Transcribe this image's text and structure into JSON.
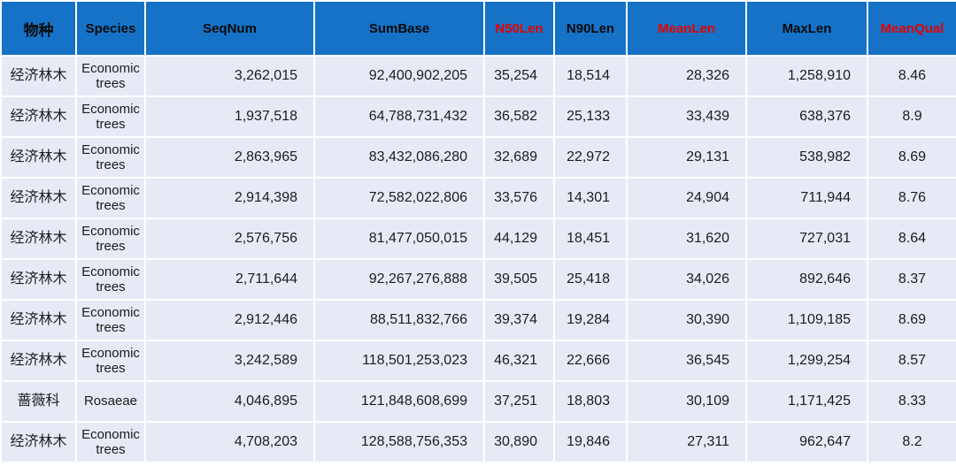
{
  "colors": {
    "header_background": "#1572C6",
    "header_text": "#0a0a0a",
    "header_highlight_text": "#E60000",
    "row_background": "#E6EAF4",
    "cell_text": "#1c1c1c",
    "separator": "#ffffff"
  },
  "table": {
    "columns": [
      {
        "id": "species-cn",
        "label": "物种",
        "highlight": false,
        "align": "center",
        "kind": "cn"
      },
      {
        "id": "species-en",
        "label": "Species",
        "highlight": false,
        "align": "center",
        "kind": "en"
      },
      {
        "id": "seqnum",
        "label": "SeqNum",
        "highlight": false,
        "align": "right",
        "kind": "num"
      },
      {
        "id": "sumbase",
        "label": "SumBase",
        "highlight": false,
        "align": "right",
        "kind": "num"
      },
      {
        "id": "n50len",
        "label": "N50Len",
        "highlight": true,
        "align": "right",
        "kind": "num"
      },
      {
        "id": "n90len",
        "label": "N90Len",
        "highlight": false,
        "align": "right",
        "kind": "num"
      },
      {
        "id": "meanlen",
        "label": "MeanLen",
        "highlight": true,
        "align": "right",
        "kind": "num"
      },
      {
        "id": "maxlen",
        "label": "MaxLen",
        "highlight": false,
        "align": "right",
        "kind": "num"
      },
      {
        "id": "meanqual",
        "label": "MeanQual",
        "highlight": true,
        "align": "center",
        "kind": "num"
      }
    ],
    "rows": [
      {
        "cells": [
          "经济林木",
          "Economic trees",
          "3,262,015",
          "92,400,902,205",
          "35,254",
          "18,514",
          "28,326",
          "1,258,910",
          "8.46"
        ]
      },
      {
        "cells": [
          "经济林木",
          "Economic trees",
          "1,937,518",
          "64,788,731,432",
          "36,582",
          "25,133",
          "33,439",
          "638,376",
          "8.9"
        ]
      },
      {
        "cells": [
          "经济林木",
          "Economic trees",
          "2,863,965",
          "83,432,086,280",
          "32,689",
          "22,972",
          "29,131",
          "538,982",
          "8.69"
        ]
      },
      {
        "cells": [
          "经济林木",
          "Economic trees",
          "2,914,398",
          "72,582,022,806",
          "33,576",
          "14,301",
          "24,904",
          "711,944",
          "8.76"
        ]
      },
      {
        "cells": [
          "经济林木",
          "Economic trees",
          "2,576,756",
          "81,477,050,015",
          "44,129",
          "18,451",
          "31,620",
          "727,031",
          "8.64"
        ]
      },
      {
        "cells": [
          "经济林木",
          "Economic trees",
          "2,711,644",
          "92,267,276,888",
          "39,505",
          "25,418",
          "34,026",
          "892,646",
          "8.37"
        ]
      },
      {
        "cells": [
          "经济林木",
          "Economic trees",
          "2,912,446",
          "88,511,832,766",
          "39,374",
          "19,284",
          "30,390",
          "1,109,185",
          "8.69"
        ]
      },
      {
        "cells": [
          "经济林木",
          "Economic trees",
          "3,242,589",
          "118,501,253,023",
          "46,321",
          "22,666",
          "36,545",
          "1,299,254",
          "8.57"
        ]
      },
      {
        "cells": [
          "蔷薇科",
          "Rosaeae",
          "4,046,895",
          "121,848,608,699",
          "37,251",
          "18,803",
          "30,109",
          "1,171,425",
          "8.33"
        ]
      },
      {
        "cells": [
          "经济林木",
          "Economic trees",
          "4,708,203",
          "128,588,756,353",
          "30,890",
          "19,846",
          "27,311",
          "962,647",
          "8.2"
        ]
      }
    ]
  }
}
